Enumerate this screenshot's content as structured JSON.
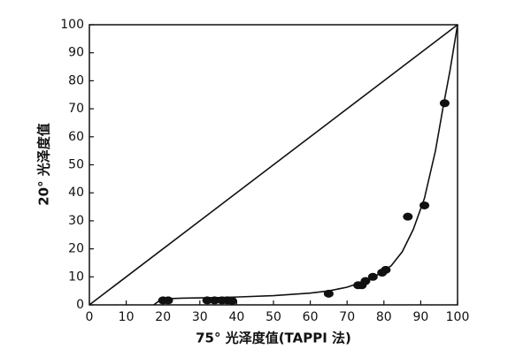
{
  "chart_data": {
    "type": "scatter",
    "xlabel": "75° 光泽度值(TAPPI 法)",
    "ylabel": "20° 光泽度值",
    "xlim": [
      0,
      100
    ],
    "ylim": [
      0,
      100
    ],
    "xticks": [
      0,
      10,
      20,
      30,
      40,
      50,
      60,
      70,
      80,
      90,
      100
    ],
    "yticks": [
      0,
      10,
      20,
      30,
      40,
      50,
      60,
      70,
      80,
      90,
      100
    ],
    "series": [
      {
        "type": "scatter",
        "color": "#111111",
        "x": [
          20,
          21.4,
          32,
          34,
          36,
          37.5,
          38.8,
          65,
          73,
          74,
          75,
          77,
          79.5,
          80.5,
          86.5,
          91,
          96.5
        ],
        "values": [
          1.6,
          1.6,
          1.6,
          1.6,
          1.6,
          1.6,
          1.4,
          4,
          7,
          7,
          8.5,
          10,
          11.5,
          12.5,
          31.5,
          35.5,
          72
        ]
      },
      {
        "type": "line",
        "color": "#111111",
        "x": [
          17.5,
          19,
          21,
          25,
          30,
          35,
          40,
          50,
          60,
          65,
          70,
          75,
          78,
          82,
          85,
          88,
          91,
          94,
          96,
          98,
          100
        ],
        "values": [
          0,
          1.5,
          2.2,
          2.4,
          2.5,
          2.6,
          2.8,
          3.3,
          4.2,
          5,
          6.3,
          8.5,
          10.5,
          14,
          19,
          27,
          38,
          55,
          70,
          84,
          100
        ]
      },
      {
        "type": "line",
        "color": "#111111",
        "x": [
          0,
          100
        ],
        "values": [
          0,
          100
        ]
      }
    ]
  }
}
